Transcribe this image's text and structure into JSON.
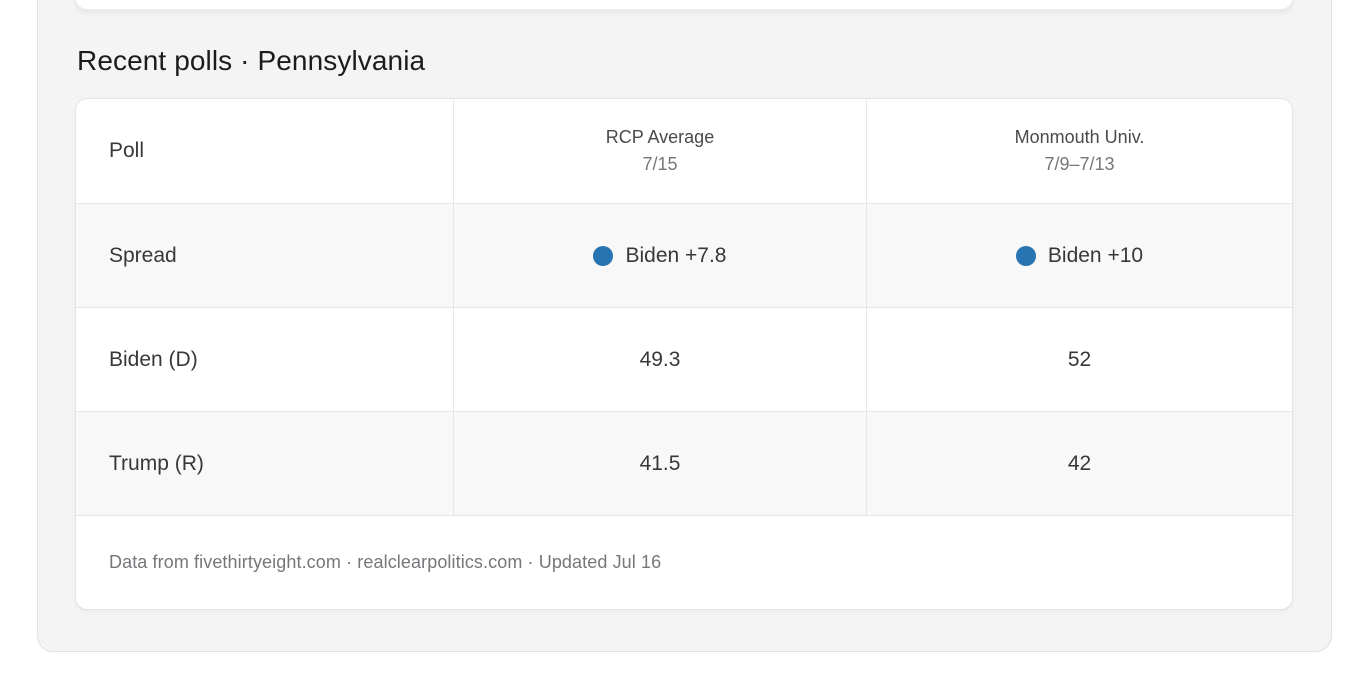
{
  "colors": {
    "accent_dot": "#2874b2",
    "panel_bg": "#f4f4f5",
    "row_alt_bg": "#f8f8f9"
  },
  "page": {
    "title": "Recent polls · Pennsylvania"
  },
  "table": {
    "corner_label": "Poll",
    "columns": [
      {
        "title": "RCP Average",
        "date": "7/15"
      },
      {
        "title": "Monmouth Univ.",
        "date": "7/9–7/13"
      }
    ],
    "rows": [
      {
        "label": "Spread",
        "cells": [
          {
            "dot": true,
            "text": "Biden +7.8"
          },
          {
            "dot": true,
            "text": "Biden +10"
          }
        ]
      },
      {
        "label": "Biden (D)",
        "values": [
          "49.3",
          "52"
        ]
      },
      {
        "label": "Trump (R)",
        "values": [
          "41.5",
          "42"
        ]
      }
    ],
    "footer": "Data from fivethirtyeight.com · realclearpolitics.com · Updated Jul 16"
  }
}
